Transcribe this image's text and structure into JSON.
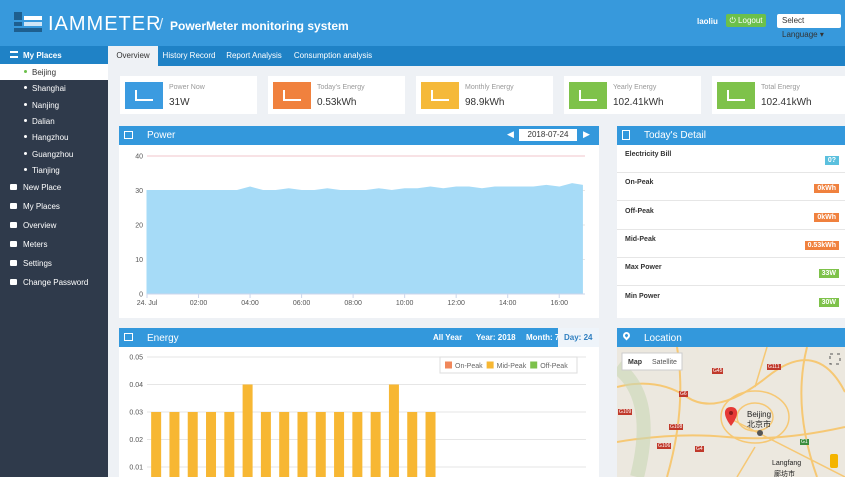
{
  "header": {
    "logo": "IAMMETER",
    "separator": "/",
    "title": "PowerMeter monitoring system",
    "user": "laoliu",
    "logout": "Logout",
    "language": "Select Language"
  },
  "sidebar": {
    "section": "My Places",
    "places": [
      "Beijing",
      "Shanghai",
      "Nanjing",
      "Dalian",
      "Hangzhou",
      "Guangzhou",
      "Tianjing"
    ],
    "menu": [
      "New Place",
      "My Places",
      "Overview",
      "Meters",
      "Settings",
      "Change Password"
    ]
  },
  "tabs": [
    "Overview",
    "History Record",
    "Report Analysis",
    "Consumption analysis"
  ],
  "cards": [
    {
      "label": "Power Now",
      "value": "31W",
      "color": "#3b9be0"
    },
    {
      "label": "Today's Energy",
      "value": "0.53kWh",
      "color": "#f0813e"
    },
    {
      "label": "Monthly Energy",
      "value": "98.9kWh",
      "color": "#f5b93a"
    },
    {
      "label": "Yearly Energy",
      "value": "102.41kWh",
      "color": "#7ec24a"
    },
    {
      "label": "Total Energy",
      "value": "102.41kWh",
      "color": "#7ec24a"
    }
  ],
  "power_panel": {
    "date": "2018-07-24"
  },
  "energy_panel": {
    "controls": [
      "All Year",
      "Year: 2018",
      "Month: 7",
      "Day: 24"
    ]
  },
  "detail": {
    "title": "Today's Detail",
    "items": [
      {
        "label": "Electricity Bill",
        "value": "0?",
        "color": "#5bc0de"
      },
      {
        "label": "On-Peak",
        "value": "0kWh",
        "color": "#f0813e"
      },
      {
        "label": "Off-Peak",
        "value": "0kWh",
        "color": "#f0813e"
      },
      {
        "label": "Mid-Peak",
        "value": "0.53kWh",
        "color": "#f0813e"
      },
      {
        "label": "Max Power",
        "value": "33W",
        "color": "#7ec24a"
      },
      {
        "label": "Min Power",
        "value": "30W",
        "color": "#7ec24a"
      }
    ]
  },
  "location": {
    "title": "Location",
    "buttons": [
      "Map",
      "Satellite"
    ],
    "city": "Beijing",
    "city_local": "北京市",
    "town": "Langfang",
    "town_local": "廊坊市",
    "roads": [
      "G109",
      "G6",
      "G108",
      "G4",
      "G1",
      "G106",
      "G111",
      "G45"
    ]
  },
  "chart_data": [
    {
      "type": "area",
      "title": "Power",
      "color": "#a6dbf7",
      "grid": true,
      "x": [
        0,
        0.5,
        1,
        1.5,
        2,
        2.5,
        3,
        3.5,
        4,
        4.5,
        5,
        5.5,
        6,
        6.5,
        7,
        7.5,
        8,
        8.5,
        9,
        9.5,
        10,
        10.5,
        11,
        11.5,
        12,
        12.5,
        13,
        13.5,
        14,
        14.5,
        15,
        15.5,
        16,
        16.5,
        16.9
      ],
      "values": [
        30,
        30,
        30,
        30,
        30,
        30,
        30,
        30,
        31,
        30,
        30,
        30.5,
        30,
        30,
        30.5,
        30,
        30,
        30,
        30.5,
        30,
        30.5,
        30.5,
        31,
        30.5,
        31,
        31,
        30.5,
        31,
        31,
        31,
        31,
        31.5,
        31,
        32,
        31.5
      ],
      "xlim": [
        0,
        17
      ],
      "xticks": [
        {
          "value": 0,
          "label": "24. Jul"
        },
        {
          "value": 2,
          "label": "02:00"
        },
        {
          "value": 4,
          "label": "04:00"
        },
        {
          "value": 6,
          "label": "06:00"
        },
        {
          "value": 8,
          "label": "08:00"
        },
        {
          "value": 10,
          "label": "10:00"
        },
        {
          "value": 12,
          "label": "12:00"
        },
        {
          "value": 14,
          "label": "14:00"
        },
        {
          "value": 16,
          "label": "16:00"
        }
      ],
      "ylim": [
        0,
        40
      ],
      "yticks": [
        0,
        10,
        20,
        30,
        40
      ]
    },
    {
      "type": "bar",
      "title": "Energy",
      "grid": true,
      "categories": [
        null,
        null,
        null,
        null,
        null,
        null,
        null,
        null,
        null,
        null,
        null,
        null,
        null,
        null,
        null,
        null,
        null,
        null,
        null,
        null,
        null,
        null,
        null,
        null
      ],
      "series": [
        {
          "name": "On-Peak",
          "color": "#f0875a",
          "values": [
            null,
            null,
            null,
            null,
            null,
            null,
            null,
            null,
            null,
            null,
            null,
            null,
            null,
            null,
            null,
            null,
            null,
            null,
            null,
            null,
            null,
            null,
            null,
            null
          ]
        },
        {
          "name": "Mid-Peak",
          "color": "#f7b733",
          "values": [
            0.03,
            0.03,
            0.03,
            0.03,
            0.03,
            0.04,
            0.03,
            0.03,
            0.03,
            0.03,
            0.03,
            0.03,
            0.03,
            0.04,
            0.03,
            0.03,
            null,
            null,
            null,
            null,
            null,
            null,
            null,
            null
          ]
        },
        {
          "name": "Off-Peak",
          "color": "#7dc14c",
          "values": [
            null,
            null,
            null,
            null,
            null,
            null,
            null,
            null,
            null,
            null,
            null,
            null,
            null,
            null,
            null,
            null,
            null,
            null,
            null,
            null,
            null,
            null,
            null,
            null
          ]
        }
      ],
      "ylim": [
        0,
        0.05
      ],
      "yticks": [
        0.01,
        0.02,
        0.03,
        0.04,
        0.05
      ]
    }
  ]
}
